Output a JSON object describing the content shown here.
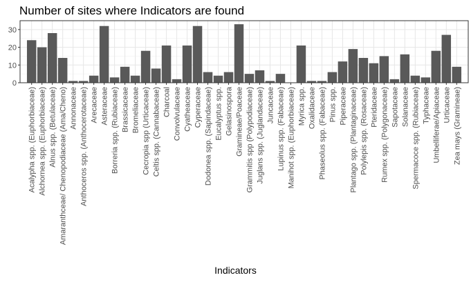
{
  "chart_data": {
    "type": "bar",
    "title": "Number of sites where Indicators are found",
    "xlabel": "Indicators",
    "ylabel": "",
    "ylim": [
      0,
      35
    ],
    "yticks": [
      0,
      10,
      20,
      30
    ],
    "grid": true,
    "bar_color": "#595959",
    "categories": [
      "Acalypha spp. (Euphorbiaceae)",
      "Alchornea spp. (Euphorbiaceae)",
      "Alnus spp. (Betulaceae)",
      "Amaranthceae/ Chenopodiaceae (Ama/Cheno)",
      "Annonaceae",
      "Anthoceros spp. (Anthocerotaceae)",
      "Arecaceae",
      "Asteraceae",
      "Borreria spp. (Rubiaceae)",
      "Brassicaceae",
      "Bromeliaceae",
      "Cecropia spp (Urticaceae)",
      "Celtis spp. (Cannabaceae)",
      "Charcoal",
      "Convolvulaceae",
      "Cyatheaceae",
      "Cyperaceae",
      "Dodonea spp. (Sapindaceae)",
      "Eucalyptus spp.",
      "Gelasinospora",
      "Gramineae/Poaceae",
      "Grammitis spp (Polypodiaceae)",
      "Juglans spp. (Juglandaceae)",
      "Juncaceae",
      "Lupinus spp. (Fabaceae)",
      "Manihot spp. (Euphorbiaceae)",
      "Myrica spp.",
      "Oxalidaceae",
      "Phaseolus spp. (Fabaceae)",
      "Pinus spp.",
      "Piperaceae",
      "Plantago spp. (Plantaginaceae)",
      "Polylepis spp. (Rosaceae)",
      "Pteridaceae",
      "Rumex spp. (Polygonaceae)",
      "Sapotaceae",
      "Solanaceae",
      "Spermacoce spp. (Rubiaceae)",
      "Typhaceae",
      "Umbelliferae/Apiaceae",
      "Urticaceae",
      "Zea mays (Gramineae)"
    ],
    "values": [
      24,
      20,
      28,
      14,
      1,
      1,
      4,
      32,
      3,
      9,
      4,
      18,
      8,
      21,
      2,
      21,
      32,
      6,
      4,
      6,
      33,
      5,
      7,
      1,
      5,
      0,
      21,
      1,
      1,
      6,
      12,
      19,
      14,
      11,
      15,
      2,
      16,
      4,
      3,
      18,
      27,
      9
    ]
  }
}
